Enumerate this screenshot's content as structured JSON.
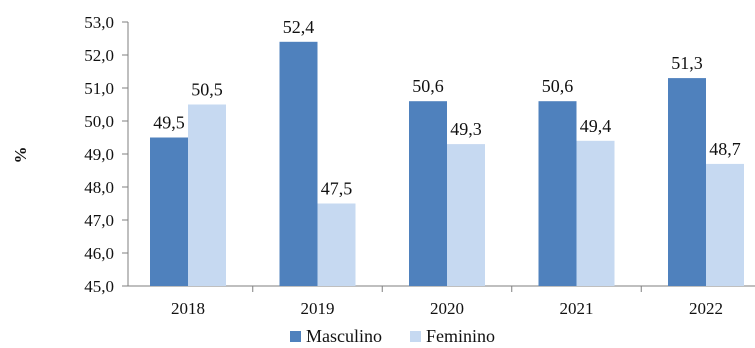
{
  "chart_data": {
    "type": "bar",
    "categories": [
      "2018",
      "2019",
      "2020",
      "2021",
      "2022"
    ],
    "series": [
      {
        "name": "Masculino",
        "values": [
          49.5,
          52.4,
          50.6,
          50.6,
          51.3
        ],
        "color": "#4f81bd"
      },
      {
        "name": "Feminino",
        "values": [
          50.5,
          47.5,
          49.3,
          49.4,
          48.7
        ],
        "color": "#c6d9f1"
      }
    ],
    "value_labels": [
      [
        "49,5",
        "52,4",
        "50,6",
        "50,6",
        "51,3"
      ],
      [
        "50,5",
        "47,5",
        "49,3",
        "49,4",
        "48,7"
      ]
    ],
    "title": "",
    "xlabel": "",
    "ylabel": "%",
    "ylim": [
      45,
      53
    ],
    "yticks": [
      45,
      46,
      47,
      48,
      49,
      50,
      51,
      52,
      53
    ],
    "ytick_labels": [
      "45,0",
      "46,0",
      "47,0",
      "48,0",
      "49,0",
      "50,0",
      "51,0",
      "52,0",
      "53,0"
    ],
    "grid": false,
    "legend_position": "bottom"
  }
}
